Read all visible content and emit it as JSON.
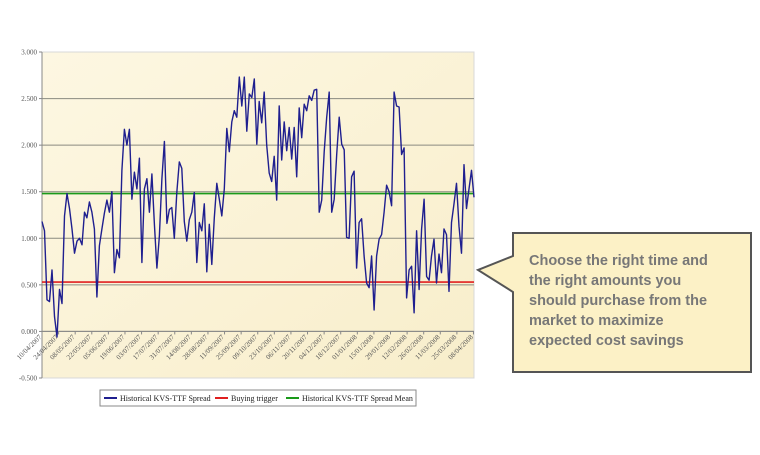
{
  "chart_data": {
    "type": "line",
    "title": "",
    "xlabel": "",
    "ylabel": "",
    "ylim": [
      -0.5,
      3.0
    ],
    "yticks": [
      "3.000",
      "2.500",
      "2.000",
      "1.500",
      "1.000",
      "0.500",
      "0.000",
      "-0.500"
    ],
    "ytick_values": [
      3.0,
      2.5,
      2.0,
      1.5,
      1.0,
      0.5,
      0.0,
      -0.5
    ],
    "xticks": [
      "10/04/2007",
      "24/04/2007",
      "08/05/2007",
      "22/05/2007",
      "05/06/2007",
      "19/06/2007",
      "03/07/2007",
      "17/07/2007",
      "31/07/2007",
      "14/08/2007",
      "28/08/2007",
      "11/09/2007",
      "25/09/2007",
      "09/10/2007",
      "23/10/2007",
      "06/11/2007",
      "20/11/2007",
      "04/12/2007",
      "18/12/2007",
      "01/01/2008",
      "15/01/2008",
      "29/01/2008",
      "12/02/2008",
      "26/02/2008",
      "11/03/2008",
      "25/03/2008",
      "08/04/2008"
    ],
    "x_range": [
      "10/04/2007",
      "08/04/2008"
    ],
    "grid": true,
    "legend_position": "bottom",
    "series": [
      {
        "name": "Historical KVS-TTF Spread",
        "color": "#1f1f8f",
        "values": [
          1.18,
          1.08,
          0.34,
          0.32,
          0.66,
          0.16,
          -0.06,
          0.45,
          0.3,
          1.24,
          1.48,
          1.32,
          1.1,
          0.84,
          0.97,
          1.0,
          0.93,
          1.28,
          1.22,
          1.39,
          1.28,
          1.1,
          0.37,
          0.92,
          1.1,
          1.27,
          1.41,
          1.28,
          1.5,
          0.63,
          0.88,
          0.79,
          1.73,
          2.17,
          2.0,
          2.17,
          1.42,
          1.71,
          1.53,
          1.86,
          0.74,
          1.53,
          1.64,
          1.28,
          1.69,
          1.15,
          0.68,
          1.03,
          1.64,
          2.04,
          1.16,
          1.31,
          1.33,
          1.0,
          1.49,
          1.82,
          1.75,
          1.18,
          0.97,
          1.2,
          1.28,
          1.49,
          0.74,
          1.17,
          1.08,
          1.37,
          0.64,
          1.15,
          0.72,
          1.22,
          1.59,
          1.42,
          1.24,
          1.53,
          2.18,
          1.93,
          2.25,
          2.37,
          2.3,
          2.73,
          2.42,
          2.73,
          2.15,
          2.55,
          2.51,
          2.71,
          2.01,
          2.47,
          2.24,
          2.57,
          2.0,
          1.7,
          1.61,
          1.88,
          1.41,
          2.42,
          1.84,
          2.25,
          1.94,
          2.19,
          1.85,
          2.19,
          1.66,
          2.4,
          2.08,
          2.44,
          2.37,
          2.53,
          2.48,
          2.59,
          2.6,
          1.28,
          1.41,
          1.93,
          2.3,
          2.57,
          1.28,
          1.42,
          1.9,
          2.3,
          2.01,
          1.95,
          1.01,
          1.0,
          1.66,
          1.72,
          0.68,
          1.17,
          1.21,
          0.81,
          0.52,
          0.47,
          0.81,
          0.23,
          0.81,
          0.99,
          1.04,
          1.28,
          1.57,
          1.5,
          1.35,
          2.57,
          2.42,
          2.41,
          1.9,
          1.97,
          0.36,
          0.66,
          0.7,
          0.2,
          1.08,
          0.45,
          1.1,
          1.42,
          0.59,
          0.55,
          0.81,
          0.99,
          0.52,
          0.83,
          0.63,
          1.1,
          1.04,
          0.43,
          1.17,
          1.37,
          1.59,
          1.13,
          0.84,
          1.79,
          1.32,
          1.53,
          1.73,
          1.44
        ]
      },
      {
        "name": "Buying trigger",
        "color": "#e02020",
        "constant": 0.53
      },
      {
        "name": "Historical KVS-TTF Spread Mean",
        "color": "#1a9a1a",
        "constant": 1.48
      }
    ]
  },
  "callout": {
    "lines": [
      "Choose the right time and",
      "the right amounts you",
      "should purchase from the",
      "market to maximize",
      "expected cost savings"
    ],
    "fill": "#fcf1c6",
    "border": "#555555"
  }
}
